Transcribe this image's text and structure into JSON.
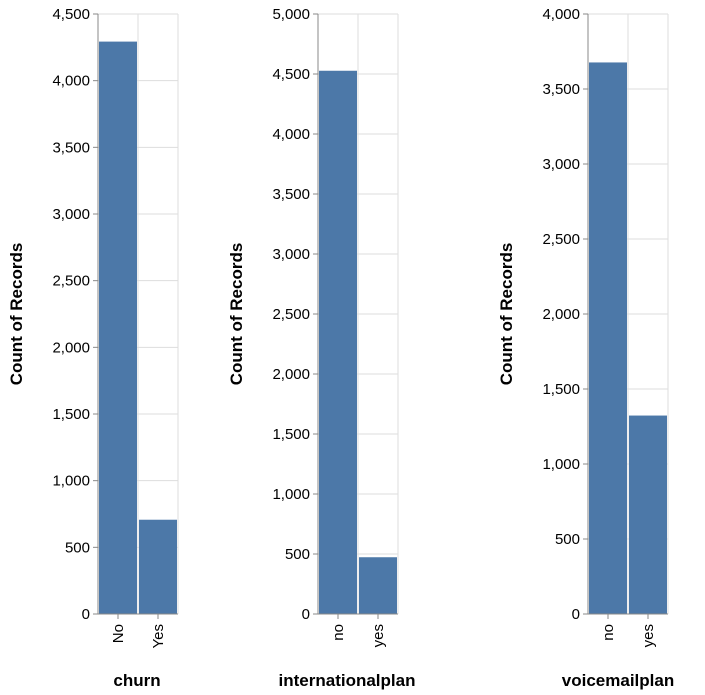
{
  "chart_data": [
    {
      "type": "bar",
      "categories": [
        "No",
        "Yes"
      ],
      "values": [
        4293,
        707
      ],
      "xlabel": "churn",
      "ylabel": "Count of Records",
      "ylim": [
        0,
        4500
      ],
      "yticks": [
        "0",
        "500",
        "1,000",
        "1,500",
        "2,000",
        "2,500",
        "3,000",
        "3,500",
        "4,000",
        "4,500"
      ],
      "ytick_values": [
        0,
        500,
        1000,
        1500,
        2000,
        2500,
        3000,
        3500,
        4000,
        4500
      ],
      "grid": true,
      "color": "#4c78a8"
    },
    {
      "type": "bar",
      "categories": [
        "no",
        "yes"
      ],
      "values": [
        4527,
        473
      ],
      "xlabel": "internationalplan",
      "ylabel": "Count of Records",
      "ylim": [
        0,
        5000
      ],
      "yticks": [
        "0",
        "500",
        "1,000",
        "1,500",
        "2,000",
        "2,500",
        "3,000",
        "3,500",
        "4,000",
        "4,500",
        "5,000"
      ],
      "ytick_values": [
        0,
        500,
        1000,
        1500,
        2000,
        2500,
        3000,
        3500,
        4000,
        4500,
        5000
      ],
      "grid": true,
      "color": "#4c78a8"
    },
    {
      "type": "bar",
      "categories": [
        "no",
        "yes"
      ],
      "values": [
        3677,
        1323
      ],
      "xlabel": "voicemailplan",
      "ylabel": "Count of Records",
      "ylim": [
        0,
        4000
      ],
      "yticks": [
        "0",
        "500",
        "1,000",
        "1,500",
        "2,000",
        "2,500",
        "3,000",
        "3,500",
        "4,000"
      ],
      "ytick_values": [
        0,
        500,
        1000,
        1500,
        2000,
        2500,
        3000,
        3500,
        4000
      ],
      "grid": true,
      "color": "#4c78a8"
    }
  ]
}
